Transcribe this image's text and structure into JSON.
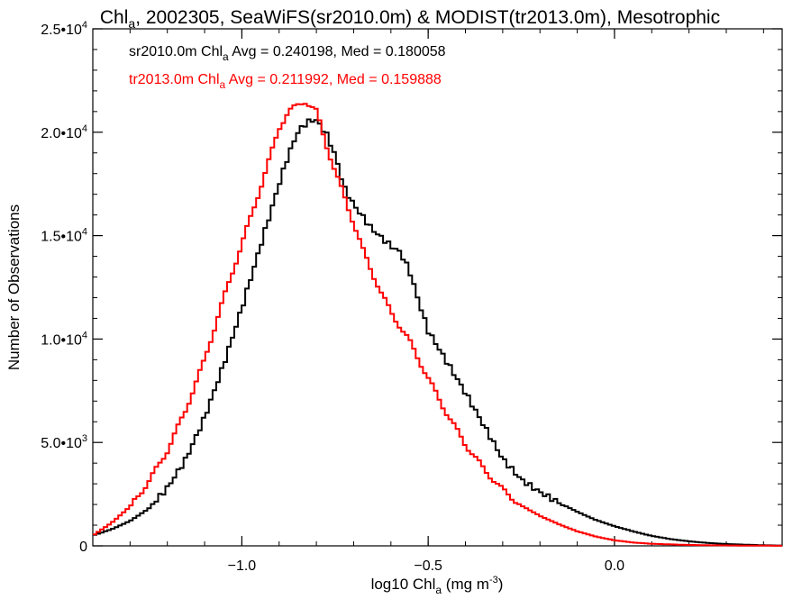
{
  "chart_data": {
    "type": "line",
    "title": {
      "main": "Chl",
      "sub": "a",
      "rest": ", 2002305, SeaWiFS(sr2010.0m) & MODIST(tr2013.0m), Mesotrophic"
    },
    "xlabel": {
      "pre": "log10 Chl",
      "sub": "a",
      "mid": " (mg m",
      "sup": "-3",
      "post": ")"
    },
    "ylabel": "Number of Observations",
    "xlim": [
      -1.4,
      0.45
    ],
    "ylim": [
      0,
      25000
    ],
    "x_ticks": [
      {
        "value": -1.0,
        "label": "−1.0"
      },
      {
        "value": -0.5,
        "label": "−0.5"
      },
      {
        "value": 0.0,
        "label": "0.0"
      }
    ],
    "y_ticks": [
      {
        "value": 0,
        "mant": "0",
        "exp": ""
      },
      {
        "value": 5000,
        "mant": "5.0•10",
        "exp": "3"
      },
      {
        "value": 10000,
        "mant": "1.0•10",
        "exp": "4"
      },
      {
        "value": 15000,
        "mant": "1.5•10",
        "exp": "4"
      },
      {
        "value": 20000,
        "mant": "2.0•10",
        "exp": "4"
      },
      {
        "value": 25000,
        "mant": "2.5•10",
        "exp": "4"
      }
    ],
    "series": [
      {
        "name": "sr2010.0m",
        "color": "#000000",
        "stats": {
          "pre": "sr2010.0m Chl",
          "sub": "a",
          "post": " Avg = 0.240198, Med = 0.180058"
        },
        "x": [
          -1.4,
          -1.35,
          -1.3,
          -1.25,
          -1.2,
          -1.15,
          -1.1,
          -1.05,
          -1.0,
          -0.95,
          -0.9,
          -0.875,
          -0.85,
          -0.825,
          -0.8,
          -0.79,
          -0.775,
          -0.75,
          -0.725,
          -0.7,
          -0.675,
          -0.65,
          -0.625,
          -0.6,
          -0.575,
          -0.55,
          -0.525,
          -0.5,
          -0.45,
          -0.4,
          -0.35,
          -0.3,
          -0.25,
          -0.2,
          -0.15,
          -0.1,
          -0.05,
          0.0,
          0.05,
          0.1,
          0.15,
          0.2,
          0.25,
          0.3,
          0.35,
          0.4,
          0.45
        ],
        "y": [
          500,
          800,
          1200,
          1800,
          2800,
          4200,
          6200,
          8700,
          11500,
          14500,
          17500,
          18900,
          20000,
          20500,
          20600,
          20300,
          20000,
          18900,
          17300,
          16500,
          15900,
          15300,
          14900,
          14500,
          14200,
          13300,
          11800,
          10400,
          8900,
          7400,
          5800,
          4200,
          3200,
          2600,
          2100,
          1650,
          1250,
          950,
          700,
          480,
          330,
          220,
          140,
          90,
          55,
          30,
          15
        ]
      },
      {
        "name": "tr2013.0m",
        "color": "#ff0000",
        "stats": {
          "pre": "tr2013.0m Chl",
          "sub": "a",
          "post": " Avg = 0.211992, Med = 0.159888"
        },
        "x": [
          -1.4,
          -1.35,
          -1.3,
          -1.25,
          -1.2,
          -1.15,
          -1.1,
          -1.05,
          -1.0,
          -0.95,
          -0.9,
          -0.875,
          -0.85,
          -0.83,
          -0.8,
          -0.775,
          -0.75,
          -0.725,
          -0.7,
          -0.675,
          -0.65,
          -0.625,
          -0.6,
          -0.575,
          -0.55,
          -0.5,
          -0.45,
          -0.4,
          -0.35,
          -0.3,
          -0.25,
          -0.2,
          -0.15,
          -0.1,
          -0.05,
          0.0,
          0.05,
          0.1,
          0.15,
          0.2,
          0.25,
          0.3,
          0.35,
          0.4,
          0.45
        ],
        "y": [
          500,
          1100,
          1900,
          3100,
          4600,
          6600,
          9000,
          11900,
          14600,
          17300,
          20200,
          21000,
          21300,
          21500,
          21000,
          19500,
          18100,
          16900,
          15600,
          14300,
          13200,
          12200,
          11300,
          10600,
          9900,
          8100,
          6400,
          4900,
          3700,
          2700,
          1950,
          1450,
          1050,
          700,
          450,
          270,
          160,
          100,
          70,
          45,
          30,
          20,
          12,
          8,
          5
        ]
      }
    ],
    "grid": false,
    "legend": "top-left annotations"
  }
}
